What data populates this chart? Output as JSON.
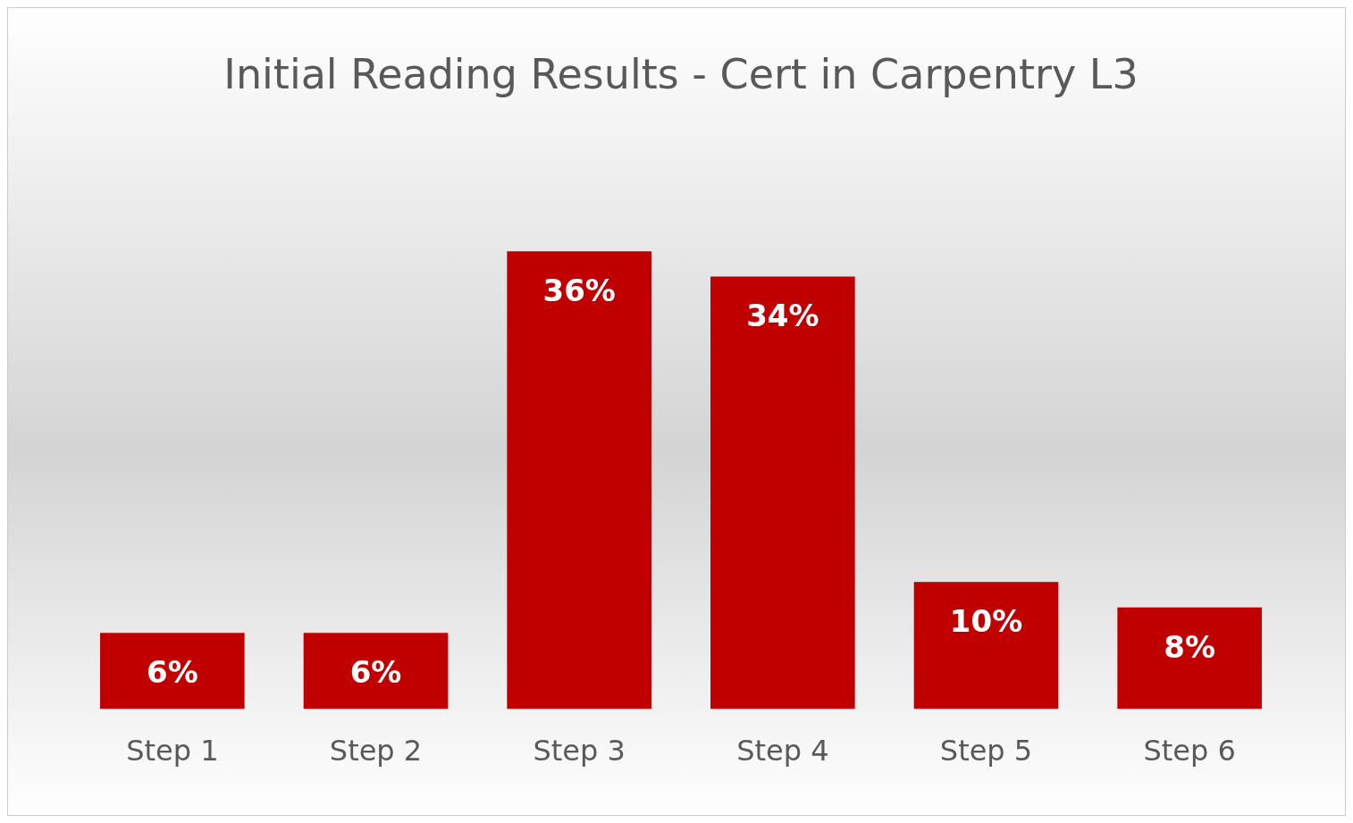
{
  "chart_data": {
    "type": "bar",
    "title": "Initial Reading Results - Cert in Carpentry L3",
    "categories": [
      "Step 1",
      "Step 2",
      "Step 3",
      "Step 4",
      "Step 5",
      "Step 6"
    ],
    "values": [
      6,
      6,
      36,
      34,
      10,
      8
    ],
    "value_labels": [
      "6%",
      "6%",
      "36%",
      "34%",
      "10%",
      "8%"
    ],
    "color": "#c00000",
    "grid": false,
    "legend": false
  }
}
